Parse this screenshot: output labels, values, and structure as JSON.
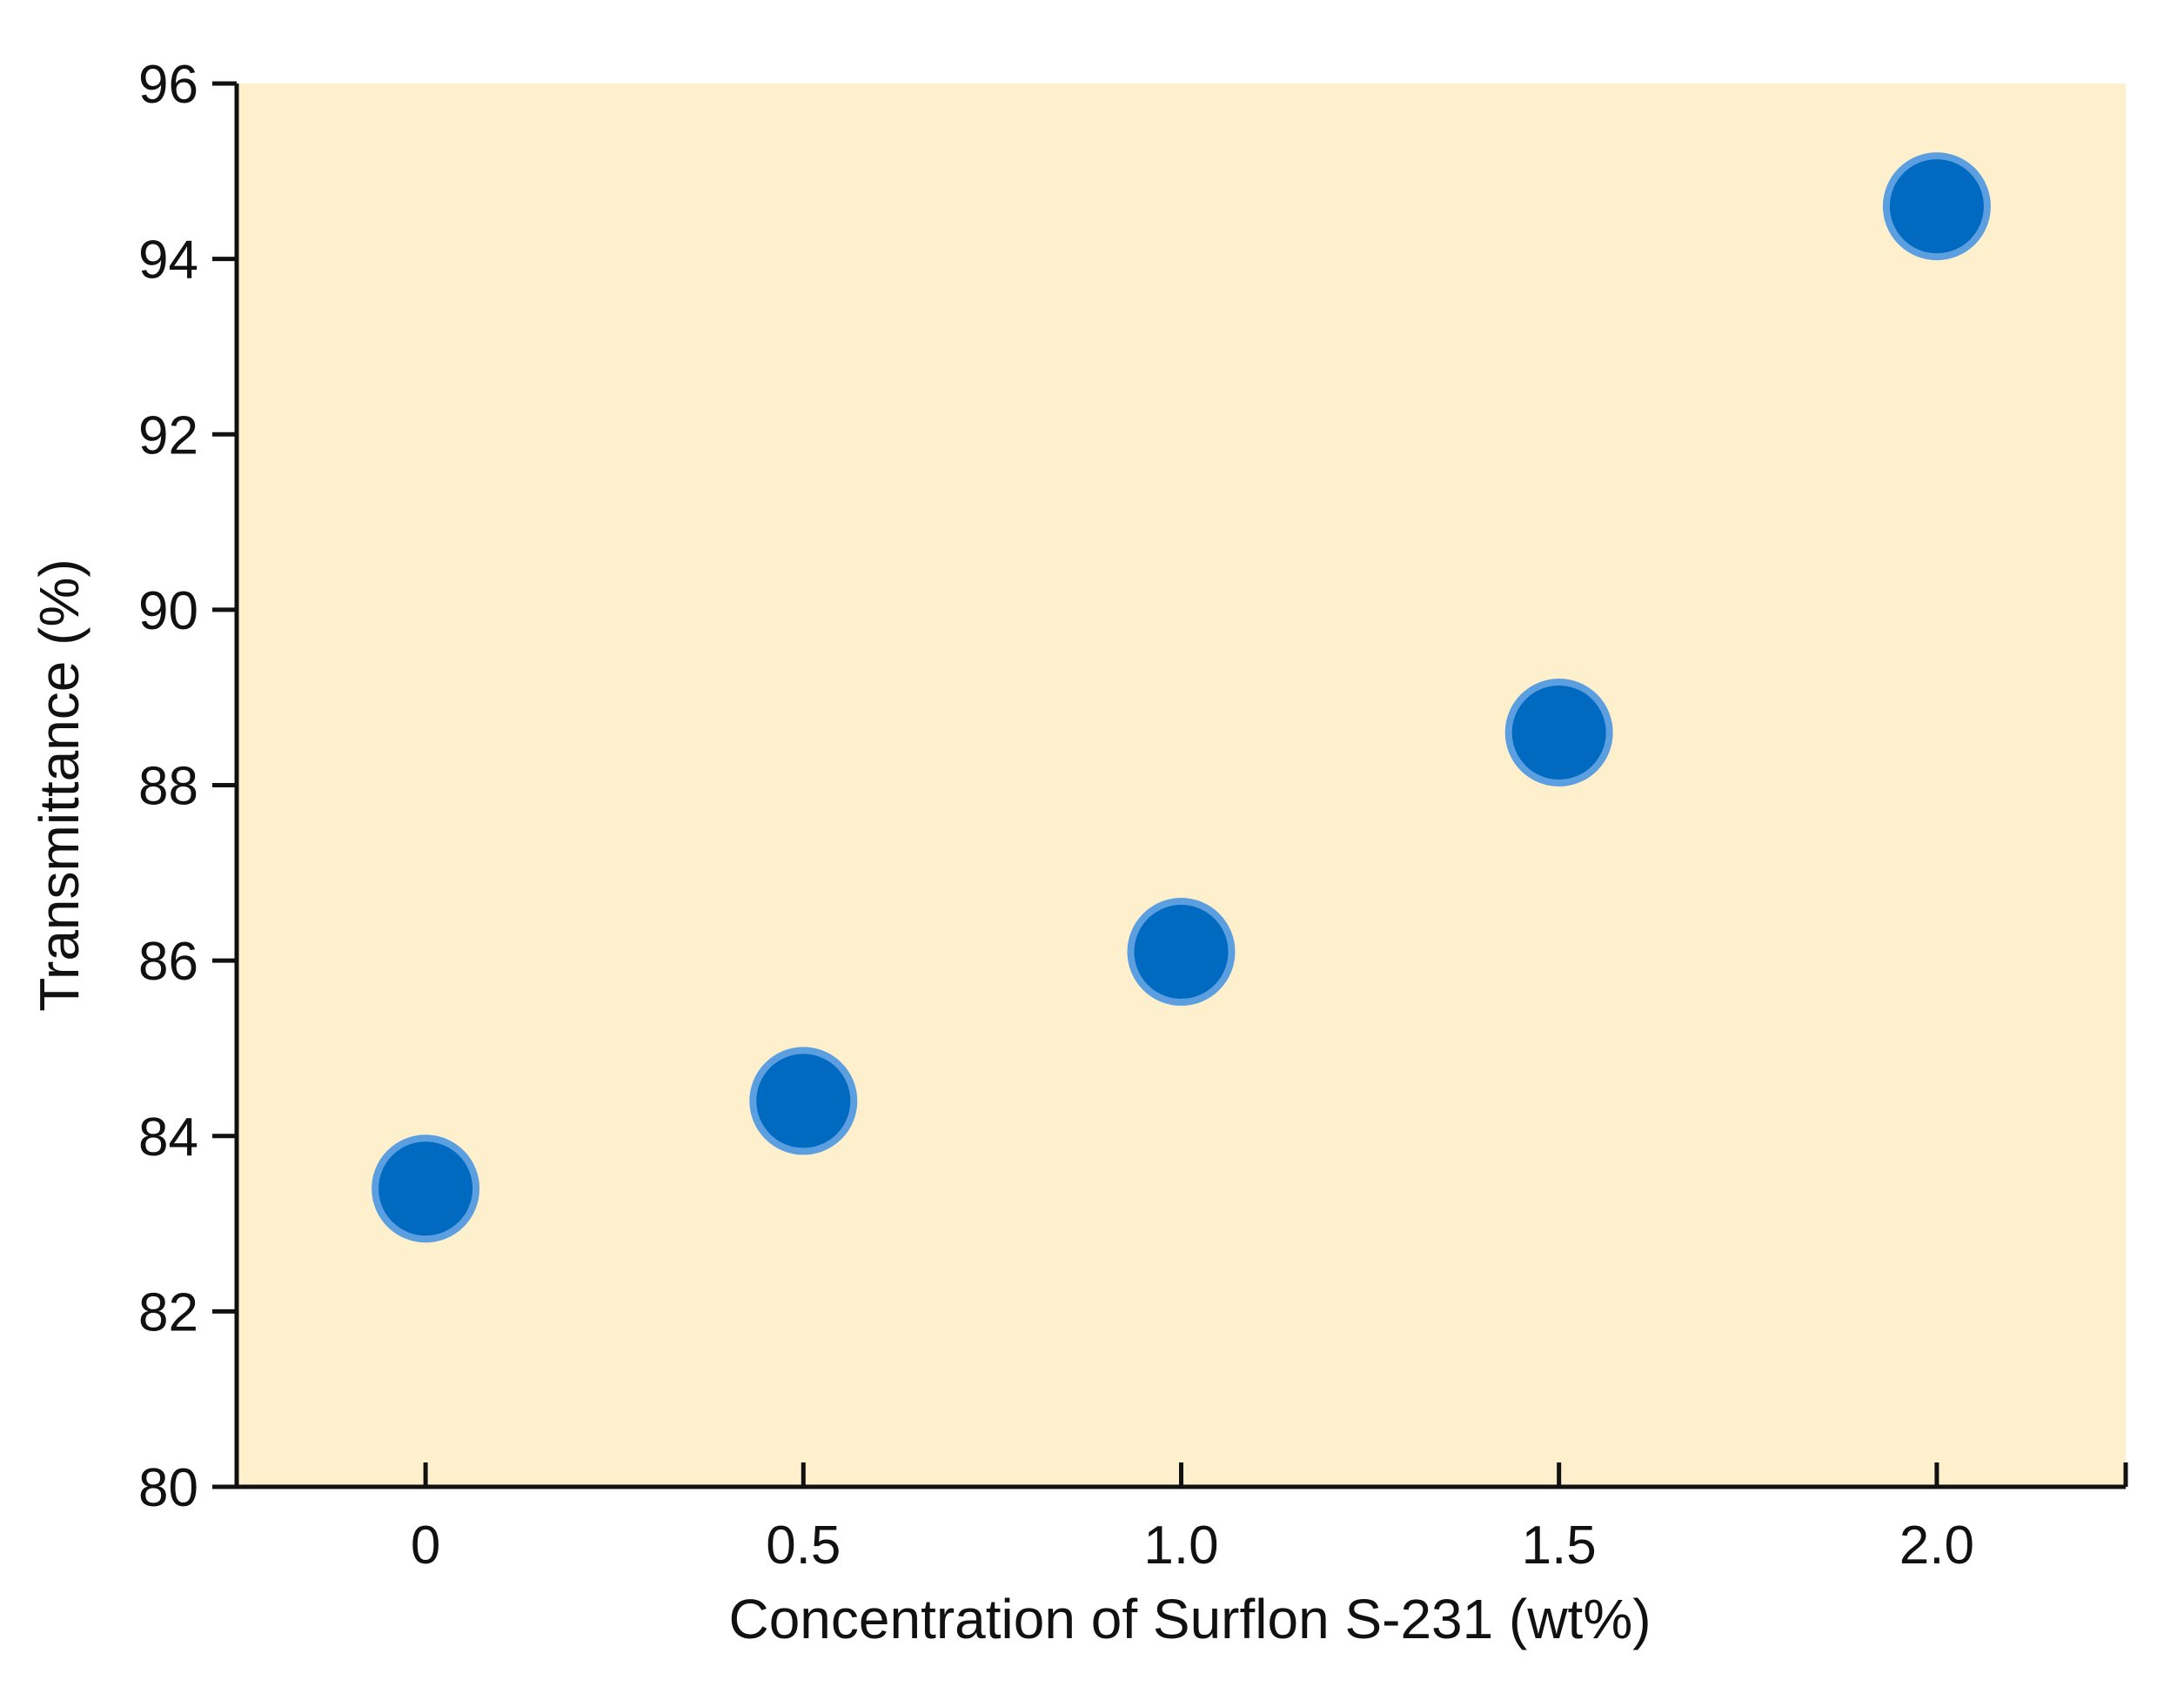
{
  "chart_data": {
    "type": "scatter",
    "title": "",
    "xlabel": "Concentration of Surflon S-231 (wt%)",
    "ylabel": "Transmittance (%)",
    "xlim": [
      -0.25,
      2.25
    ],
    "ylim": [
      80,
      96
    ],
    "x_ticks": [
      {
        "value": 0,
        "label": "0"
      },
      {
        "value": 0.5,
        "label": "0.5"
      },
      {
        "value": 1.0,
        "label": "1.0"
      },
      {
        "value": 1.5,
        "label": "1.5"
      },
      {
        "value": 2.0,
        "label": "2.0"
      }
    ],
    "y_ticks": [
      {
        "value": 80,
        "label": "80"
      },
      {
        "value": 82,
        "label": "82"
      },
      {
        "value": 84,
        "label": "84"
      },
      {
        "value": 86,
        "label": "86"
      },
      {
        "value": 88,
        "label": "88"
      },
      {
        "value": 90,
        "label": "90"
      },
      {
        "value": 92,
        "label": "92"
      },
      {
        "value": 94,
        "label": "94"
      },
      {
        "value": 96,
        "label": "96"
      }
    ],
    "series": [
      {
        "points": [
          {
            "x": 0,
            "y": 83.4
          },
          {
            "x": 0.5,
            "y": 84.4
          },
          {
            "x": 1.0,
            "y": 86.1
          },
          {
            "x": 1.5,
            "y": 88.6
          },
          {
            "x": 2.0,
            "y": 94.6
          }
        ]
      }
    ],
    "grid": false,
    "legend": "none",
    "colors": {
      "plot_background": "#fef0cd",
      "marker_fill": "#006ac1",
      "marker_edge": "#5b9fe0",
      "axis": "#111111"
    }
  }
}
